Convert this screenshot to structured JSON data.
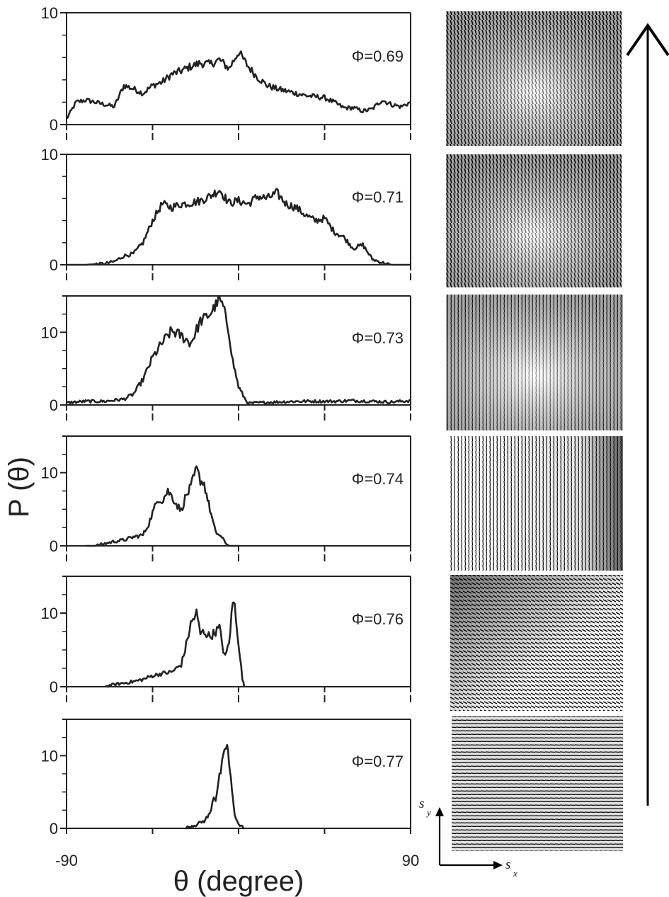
{
  "chart_data": [
    {
      "type": "line",
      "phi_label": "Φ=0.69",
      "xlim": [
        -90,
        90
      ],
      "ylim": [
        0,
        10
      ],
      "yticks": [
        0,
        10
      ],
      "ytick_labels": [
        "0",
        "10"
      ],
      "series": [
        {
          "x": [
            -90,
            -85,
            -80,
            -75,
            -70,
            -65,
            -60,
            -55,
            -50,
            -45,
            -40,
            -35,
            -30,
            -25,
            -20,
            -15,
            -10,
            -5,
            0,
            5,
            10,
            15,
            20,
            25,
            30,
            35,
            40,
            45,
            50,
            55,
            60,
            65,
            70,
            75,
            80,
            85,
            90
          ],
          "values": [
            0.5,
            2.0,
            2.2,
            2.0,
            1.8,
            1.6,
            3.5,
            3.2,
            2.8,
            3.5,
            3.8,
            4.5,
            4.8,
            5.2,
            5.5,
            5.4,
            5.8,
            5.0,
            6.5,
            5.2,
            4.2,
            3.5,
            3.2,
            3.0,
            2.8,
            2.6,
            2.5,
            2.4,
            2.0,
            1.5,
            1.5,
            1.2,
            1.4,
            2.2,
            1.8,
            1.6,
            2.0
          ]
        }
      ]
    },
    {
      "type": "line",
      "phi_label": "Φ=0.71",
      "xlim": [
        -90,
        90
      ],
      "ylim": [
        0,
        10
      ],
      "yticks": [
        0,
        10
      ],
      "ytick_labels": [
        "0",
        "10"
      ],
      "series": [
        {
          "x": [
            -90,
            -80,
            -70,
            -65,
            -60,
            -55,
            -50,
            -45,
            -40,
            -35,
            -30,
            -25,
            -20,
            -15,
            -10,
            -5,
            0,
            5,
            10,
            15,
            20,
            25,
            30,
            35,
            40,
            45,
            50,
            55,
            60,
            65,
            70,
            75,
            80,
            90
          ],
          "values": [
            0,
            0,
            0.1,
            0.3,
            0.8,
            1.0,
            2.0,
            4.0,
            5.5,
            5.2,
            5.5,
            5.6,
            5.8,
            6.2,
            6.8,
            5.6,
            5.8,
            5.5,
            6.2,
            6.0,
            6.5,
            5.5,
            5.2,
            4.5,
            4.0,
            4.2,
            3.0,
            2.5,
            1.5,
            1.8,
            0.5,
            0.2,
            0,
            0
          ]
        }
      ]
    },
    {
      "type": "line",
      "phi_label": "Φ=0.73",
      "xlim": [
        -90,
        90
      ],
      "ylim": [
        0,
        15
      ],
      "yticks": [
        0,
        10
      ],
      "ytick_labels": [
        "0",
        "10"
      ],
      "series": [
        {
          "x": [
            -90,
            -80,
            -70,
            -60,
            -55,
            -50,
            -45,
            -40,
            -35,
            -30,
            -25,
            -20,
            -15,
            -10,
            -8,
            -5,
            -3,
            0,
            3,
            5,
            10,
            20,
            30,
            40,
            50,
            60,
            70,
            80,
            90
          ],
          "values": [
            0.3,
            0.5,
            0.5,
            0.8,
            1.5,
            3.5,
            6.5,
            8.5,
            10.2,
            9.5,
            8.5,
            11.5,
            12.5,
            14.5,
            13.5,
            10.0,
            6.0,
            2.5,
            1.0,
            0.2,
            0.3,
            0.4,
            0.5,
            0.5,
            0.5,
            0.6,
            0.5,
            0.4,
            0.6
          ]
        }
      ]
    },
    {
      "type": "line",
      "phi_label": "Φ=0.74",
      "xlim": [
        -90,
        90
      ],
      "ylim": [
        0,
        15
      ],
      "yticks": [
        0,
        10
      ],
      "ytick_labels": [
        "0",
        "10"
      ],
      "series": [
        {
          "x": [
            -80,
            -75,
            -70,
            -65,
            -60,
            -55,
            -50,
            -47,
            -45,
            -42,
            -40,
            -37,
            -35,
            -32,
            -30,
            -28,
            -25,
            -22,
            -20,
            -18,
            -15,
            -12,
            -10,
            -7,
            -5,
            0
          ],
          "values": [
            0,
            0,
            0.3,
            0.6,
            0.8,
            1.2,
            1.5,
            3.0,
            4.5,
            6.5,
            6.2,
            7.5,
            6.8,
            5.5,
            4.8,
            6.5,
            8.0,
            10.5,
            9.0,
            8.5,
            5.0,
            1.8,
            1.5,
            0.5,
            0,
            0
          ]
        }
      ]
    },
    {
      "type": "line",
      "phi_label": "Φ=0.76",
      "xlim": [
        -90,
        90
      ],
      "ylim": [
        0,
        15
      ],
      "yticks": [
        0,
        10
      ],
      "ytick_labels": [
        "0",
        "10"
      ],
      "series": [
        {
          "x": [
            -70,
            -65,
            -60,
            -55,
            -50,
            -45,
            -40,
            -35,
            -30,
            -28,
            -25,
            -22,
            -20,
            -18,
            -15,
            -12,
            -10,
            -8,
            -7,
            -5,
            -3,
            -2,
            0,
            2,
            3
          ],
          "values": [
            0,
            0.3,
            0.5,
            0.7,
            1.0,
            1.5,
            1.8,
            2.0,
            3.0,
            5.0,
            8.5,
            10.0,
            7.2,
            7.5,
            6.8,
            7.5,
            8.0,
            5.0,
            4.0,
            6.0,
            11.5,
            11.0,
            6.0,
            1.0,
            0
          ]
        }
      ]
    },
    {
      "type": "line",
      "phi_label": "Φ=0.77",
      "xlim": [
        -90,
        90
      ],
      "ylim": [
        0,
        15
      ],
      "yticks": [
        0,
        10
      ],
      "ytick_labels": [
        "0",
        "10"
      ],
      "series": [
        {
          "x": [
            -28,
            -25,
            -22,
            -20,
            -18,
            -15,
            -13,
            -12,
            -10,
            -8,
            -6,
            -5,
            -4,
            -3,
            -2,
            0,
            2,
            3
          ],
          "values": [
            0,
            0.3,
            0.5,
            0.8,
            1.0,
            2.0,
            4.5,
            4.0,
            7.0,
            9.5,
            11.8,
            9.0,
            6.5,
            4.0,
            2.0,
            0.5,
            0.2,
            0
          ]
        }
      ]
    }
  ],
  "axes": {
    "x_title": "θ (degree)",
    "y_title": "P (θ)",
    "x_tick_labels": [
      "-90",
      "90"
    ]
  },
  "vector_fields": [
    {
      "darkness": "high"
    },
    {
      "darkness": "high"
    },
    {
      "darkness": "medium"
    },
    {
      "darkness": "medium"
    },
    {
      "darkness": "gradient"
    },
    {
      "darkness": "low"
    }
  ],
  "legend": {
    "sy_label": "s",
    "sy_sub": "y",
    "sx_label": "s",
    "sx_sub": "x"
  }
}
